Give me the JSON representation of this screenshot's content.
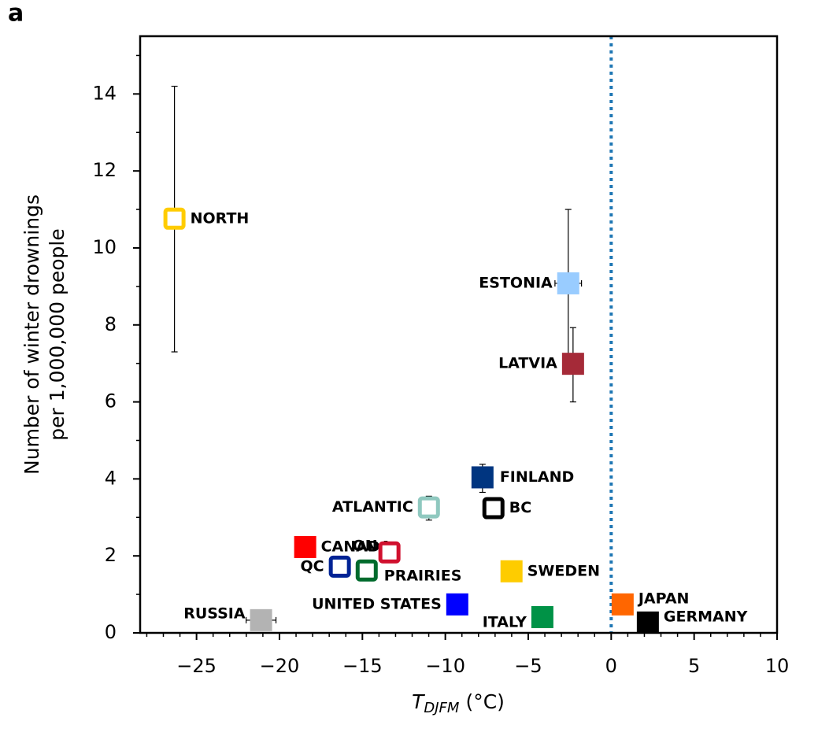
{
  "panel_label": "a",
  "chart_data": {
    "type": "scatter",
    "y_label": [
      "Number of winter drownings",
      "per 1,000,000 people"
    ],
    "x_label": {
      "symbol": "T",
      "subscript": "DJFM",
      "unit": "(°C)"
    },
    "xlim": [
      -28.4,
      10
    ],
    "ylim": [
      0,
      15.5
    ],
    "xticks": [
      {
        "value": -25,
        "label": "−25"
      },
      {
        "value": -20,
        "label": "−20"
      },
      {
        "value": -15,
        "label": "−15"
      },
      {
        "value": -10,
        "label": "−10"
      },
      {
        "value": -5,
        "label": "−5"
      },
      0,
      5,
      10
    ],
    "yticks": [
      0,
      2,
      4,
      6,
      8,
      10,
      12,
      14
    ],
    "xminorticks": [
      -28,
      -27,
      -26,
      -24,
      -23,
      -22,
      -21,
      -19,
      -18,
      -17,
      -16,
      -14,
      -13,
      -12,
      -11,
      -9,
      -8,
      -7,
      -6,
      -4,
      -3,
      -2,
      -1,
      1,
      2,
      3,
      4,
      6,
      7,
      8,
      9
    ],
    "yminorticks": [
      1,
      3,
      5,
      7,
      9,
      11,
      13,
      15
    ],
    "reference_x": 0,
    "reference_color": "#1f77b4",
    "labels": [
      "NORTH",
      "ESTONIA",
      "LATVIA",
      "FINLAND",
      "BC",
      "ATLANTIC",
      "CANADA",
      "ON",
      "QC",
      "PRAIRIES",
      "SWEDEN",
      "UNITED STATES",
      "ITALY",
      "JAPAN",
      "GERMANY",
      "RUSSIA"
    ],
    "x": [
      -26.33,
      -2.59,
      -2.3,
      -7.76,
      -7.1,
      -10.99,
      -18.45,
      -13.37,
      -16.36,
      -14.74,
      -6.01,
      -9.28,
      -4.15,
      0.69,
      2.21,
      -21.11
    ],
    "values": [
      10.76,
      9.08,
      6.99,
      4.04,
      3.24,
      3.26,
      2.23,
      2.09,
      1.72,
      1.62,
      1.6,
      0.74,
      0.41,
      0.74,
      0.27,
      0.33
    ],
    "yerr_low": [
      7.3,
      7.2,
      6.0,
      3.65,
      null,
      2.93,
      null,
      null,
      null,
      null,
      null,
      null,
      null,
      null,
      null,
      null
    ],
    "yerr_high": [
      14.2,
      11.0,
      7.93,
      4.38,
      null,
      3.55,
      null,
      null,
      null,
      null,
      null,
      null,
      null,
      null,
      null,
      null
    ],
    "xerr": [
      null,
      0.8,
      null,
      null,
      null,
      null,
      null,
      null,
      null,
      null,
      null,
      null,
      null,
      null,
      null,
      0.9
    ],
    "colors": [
      "#ffcc00",
      "#99ccff",
      "#a52a38",
      "#003580",
      "#000000",
      "#8fc8bf",
      "#ff0000",
      "#d0102e",
      "#002395",
      "#006b2d",
      "#fecc00",
      "#0000ff",
      "#009246",
      "#ff6600",
      "#000000",
      "#b3b3b3"
    ],
    "open": [
      true,
      false,
      false,
      false,
      true,
      true,
      false,
      true,
      true,
      true,
      false,
      false,
      false,
      false,
      false,
      false
    ]
  }
}
